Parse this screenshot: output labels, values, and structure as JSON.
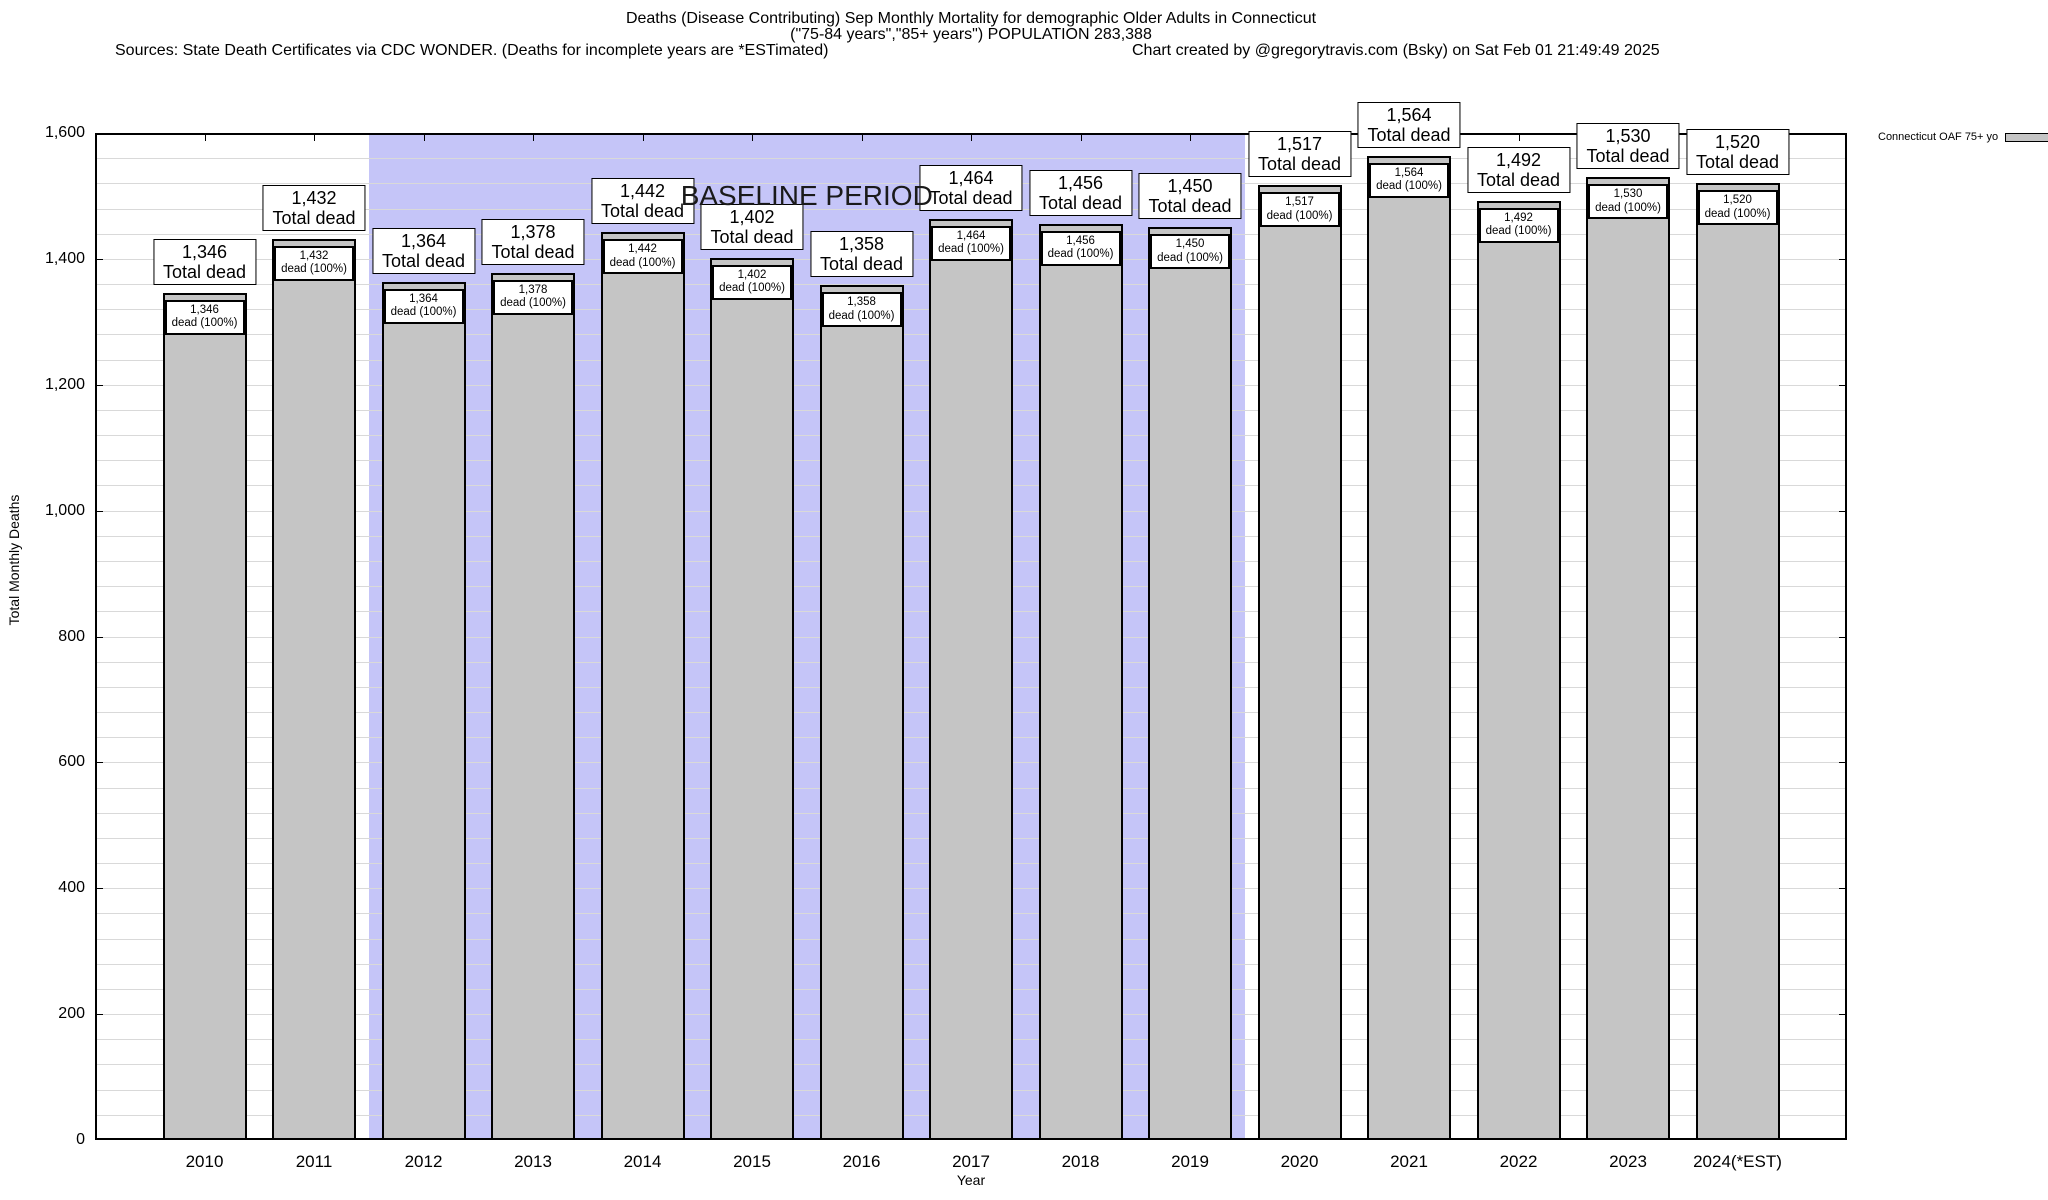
{
  "header": {
    "title_line1": "Deaths (Disease Contributing) Sep Monthly Mortality for demographic Older Adults in Connecticut",
    "title_line2": "(\"75-84 years\",\"85+ years\") POPULATION 283,388",
    "sources": "Sources: State Death Certificates via CDC WONDER. (Deaths for incomplete years are *ESTimated)",
    "credit": "Chart created by @gregorytravis.com (Bsky) on Sat Feb 01 21:49:49 2025"
  },
  "legend": {
    "label": "Connecticut OAF 75+ yo"
  },
  "baseline": {
    "label": "BASELINE PERIOD",
    "start_category": "2012",
    "end_category": "2019"
  },
  "chart_data": {
    "type": "bar",
    "title": "Deaths (Disease Contributing) Sep Monthly Mortality for demographic Older Adults in Connecticut",
    "subtitle": "(\"75-84 years\",\"85+ years\") POPULATION 283,388",
    "xlabel": "Year",
    "ylabel": "Total Monthly Deaths",
    "ylim": [
      0,
      1600
    ],
    "ytick_interval": 200,
    "minor_gridline_interval": 40,
    "grid": true,
    "legend_position": "top-right",
    "legend_entries": [
      "Connecticut OAF 75+ yo"
    ],
    "categories": [
      "2010",
      "2011",
      "2012",
      "2013",
      "2014",
      "2015",
      "2016",
      "2017",
      "2018",
      "2019",
      "2020",
      "2021",
      "2022",
      "2023",
      "2024(*EST)"
    ],
    "values": [
      1346,
      1432,
      1364,
      1378,
      1442,
      1402,
      1358,
      1464,
      1456,
      1450,
      1517,
      1564,
      1492,
      1530,
      1520
    ],
    "bar_top_label_suffix": "Total dead",
    "bar_inner_label_suffix": "dead (100%)",
    "baseline_period_categories": [
      "2012",
      "2013",
      "2014",
      "2015",
      "2016",
      "2017",
      "2018",
      "2019"
    ],
    "colors": {
      "bar_fill": "#c5c5c5",
      "bar_border": "#000000",
      "baseline_region": "#c5c5f8",
      "gridline": "#d9d9d9",
      "label_box_bg": "#ffffff"
    }
  }
}
